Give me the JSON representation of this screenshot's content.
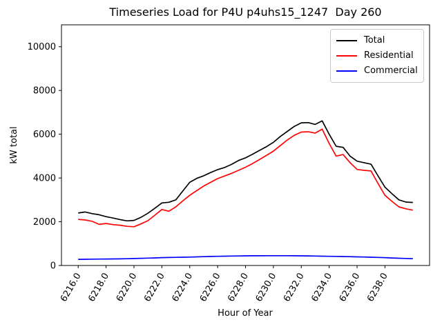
{
  "chart_data": {
    "type": "line",
    "title": "Timeseries Load for P4U p4uhs15_1247  Day 260",
    "xlabel": "Hour of Year",
    "ylabel": "kW total",
    "xlim": [
      6214.8,
      6241.2
    ],
    "ylim": [
      0,
      11000
    ],
    "xticks": [
      6216,
      6218,
      6220,
      6222,
      6224,
      6226,
      6228,
      6230,
      6232,
      6234,
      6236,
      6238
    ],
    "xtick_labels": [
      "6216.0",
      "6218.0",
      "6220.0",
      "6222.0",
      "6224.0",
      "6226.0",
      "6228.0",
      "6230.0",
      "6232.0",
      "6234.0",
      "6236.0",
      "6238.0"
    ],
    "xtick_rotation_deg": 60,
    "yticks": [
      0,
      2000,
      4000,
      6000,
      8000,
      10000
    ],
    "ytick_labels": [
      "0",
      "2000",
      "4000",
      "6000",
      "8000",
      "10000"
    ],
    "grid": false,
    "legend_position": "upper right",
    "x": [
      6216.0,
      6216.5,
      6217.0,
      6217.5,
      6218.0,
      6218.5,
      6219.0,
      6219.5,
      6220.0,
      6220.5,
      6221.0,
      6221.5,
      6222.0,
      6222.5,
      6223.0,
      6223.5,
      6224.0,
      6224.5,
      6225.0,
      6225.5,
      6226.0,
      6226.5,
      6227.0,
      6227.5,
      6228.0,
      6228.5,
      6229.0,
      6229.5,
      6230.0,
      6230.5,
      6231.0,
      6231.5,
      6232.0,
      6232.5,
      6233.0,
      6233.5,
      6234.0,
      6234.5,
      6235.0,
      6235.5,
      6236.0,
      6236.5,
      6237.0,
      6237.5,
      6238.0,
      6238.5,
      6239.0,
      6239.5,
      6240.0
    ],
    "series": [
      {
        "name": "Total",
        "color": "#000000",
        "values": [
          2400,
          2445,
          2370,
          2320,
          2230,
          2170,
          2100,
          2040,
          2060,
          2200,
          2390,
          2620,
          2860,
          2890,
          3000,
          3400,
          3800,
          3980,
          4100,
          4250,
          4380,
          4480,
          4620,
          4800,
          4920,
          5080,
          5260,
          5430,
          5630,
          5900,
          6130,
          6360,
          6520,
          6530,
          6450,
          6610,
          6000,
          5450,
          5400,
          5000,
          4770,
          4700,
          4630,
          4100,
          3580,
          3280,
          3000,
          2900,
          2880
        ]
      },
      {
        "name": "Residential",
        "color": "#ff0000",
        "values": [
          2110,
          2080,
          2020,
          1880,
          1920,
          1870,
          1840,
          1790,
          1770,
          1900,
          2050,
          2300,
          2560,
          2480,
          2680,
          2950,
          3210,
          3420,
          3630,
          3800,
          3970,
          4090,
          4210,
          4350,
          4490,
          4660,
          4840,
          5030,
          5230,
          5480,
          5740,
          5950,
          6100,
          6110,
          6050,
          6230,
          5580,
          5000,
          5070,
          4700,
          4390,
          4350,
          4320,
          3750,
          3210,
          2930,
          2680,
          2590,
          2530
        ]
      },
      {
        "name": "Commercial",
        "color": "#0000ff",
        "values": [
          280,
          285,
          290,
          292,
          295,
          298,
          302,
          310,
          318,
          328,
          338,
          348,
          358,
          365,
          372,
          378,
          385,
          395,
          405,
          412,
          420,
          426,
          432,
          436,
          440,
          443,
          445,
          446,
          447,
          447,
          447,
          445,
          442,
          437,
          432,
          426,
          420,
          415,
          410,
          402,
          395,
          387,
          378,
          368,
          358,
          344,
          330,
          320,
          312
        ]
      }
    ]
  }
}
